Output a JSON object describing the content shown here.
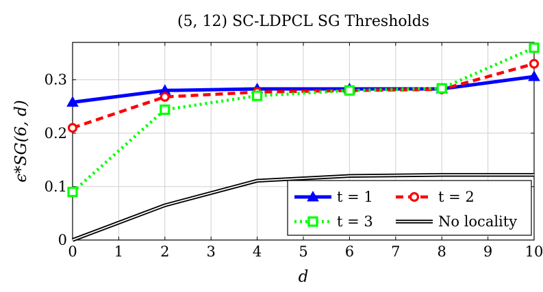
{
  "chart_data": {
    "type": "line",
    "title": "(5, 12) SC-LDPCL SG Thresholds",
    "xlabel": "d",
    "ylabel": "ϵ*SG(6, d)",
    "xlim": [
      0,
      10
    ],
    "ylim": [
      0,
      0.37
    ],
    "x_ticks": [
      0,
      1,
      2,
      3,
      4,
      5,
      6,
      7,
      8,
      9,
      10
    ],
    "y_ticks": [
      0,
      0.1,
      0.2,
      0.3
    ],
    "x_tick_labels": [
      "0",
      "1",
      "2",
      "3",
      "4",
      "5",
      "6",
      "7",
      "8",
      "9",
      "10"
    ],
    "y_tick_labels": [
      "0",
      "0.1",
      "0.2",
      "0.3"
    ],
    "grid": true,
    "legend_position": "bottom-right",
    "series": [
      {
        "name": "t = 1",
        "color": "#0000ff",
        "marker": "triangle",
        "dash": "solid",
        "x": [
          0,
          2,
          4,
          6,
          8,
          10
        ],
        "y": [
          0.258,
          0.28,
          0.283,
          0.283,
          0.283,
          0.306
        ]
      },
      {
        "name": "t = 2",
        "color": "#ff0000",
        "marker": "circle",
        "dash": "dashed",
        "x": [
          0,
          2,
          4,
          6,
          8,
          10
        ],
        "y": [
          0.21,
          0.268,
          0.277,
          0.28,
          0.282,
          0.33
        ]
      },
      {
        "name": "t = 3",
        "color": "#00ff00",
        "marker": "square",
        "dash": "dotted",
        "x": [
          0,
          2,
          4,
          6,
          8,
          10
        ],
        "y": [
          0.09,
          0.244,
          0.27,
          0.28,
          0.284,
          0.36
        ]
      },
      {
        "name": "No locality",
        "color": "#000000",
        "marker": "none",
        "dash": "double",
        "x": [
          0,
          2,
          4,
          6,
          8,
          10
        ],
        "y": [
          0.0,
          0.065,
          0.111,
          0.12,
          0.122,
          0.122
        ]
      }
    ]
  }
}
